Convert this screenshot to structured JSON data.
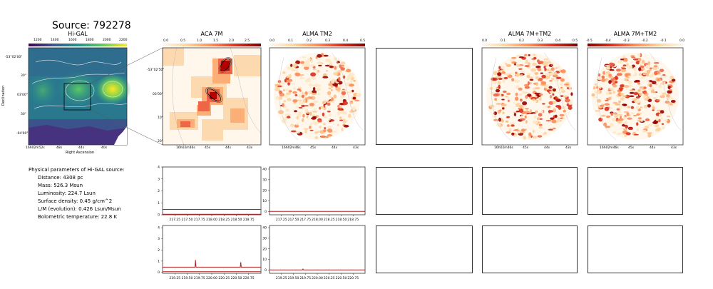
{
  "source_title": "Source: 792278",
  "colors": {
    "axis": "#333333",
    "spectrum": "#b22222",
    "higal_bright": "#fde725",
    "higal_dark": "#440154",
    "cmap_red": "#7f0000"
  },
  "physical": {
    "heading": "Physical parameters of Hi-GAL source:",
    "lines": [
      "Distance: 4308 pc",
      "Mass: 526.3 Msun",
      "Luminosity: 224.7 Lsun",
      "Surface density: 0.45 g/cm^2",
      "L/M (evolution): 0.426 Lsun/Msun",
      "Bolometric temperature: 22.8 K"
    ]
  },
  "chart_data": [
    {
      "type": "heatmap",
      "title": "Hi-GAL",
      "xlabel": "Right Ascension",
      "ylabel": "Declination",
      "colorbar_ticks": [
        "1200",
        "1400",
        "1600",
        "1800",
        "2000",
        "2200"
      ],
      "x_ticks": [
        "16h02m52s",
        "48s",
        "44s",
        "40s"
      ],
      "y_ticks": [
        "-53°02'00\"",
        "30\"",
        "03'00\"",
        "30\"",
        "-04'00\""
      ]
    },
    {
      "type": "heatmap",
      "title": "ACA 7M",
      "colorbar_ticks": [
        "0.0",
        "0.5",
        "1.0",
        "1.5",
        "2.0",
        "2.5"
      ],
      "x_ticks": [
        "16h02m46s",
        "45s",
        "44s",
        "43s"
      ],
      "y_ticks": [
        "-53°02'50\"",
        "03'00\"",
        "10\"",
        "20\""
      ]
    },
    {
      "type": "heatmap",
      "title": "ALMA TM2",
      "colorbar_ticks": [
        "0.0",
        "0.1",
        "0.2",
        "0.3",
        "0.4",
        "0.5"
      ],
      "x_ticks": [
        "16h02m46s",
        "45s",
        "44s",
        "43s"
      ]
    },
    {
      "type": "heatmap",
      "title": "ALMA 7M+TM2",
      "colorbar_ticks": [
        "0.0",
        "0.1",
        "0.2",
        "0.3",
        "0.4",
        "0.5"
      ],
      "x_ticks": [
        "16h02m46s",
        "45s",
        "44s",
        "43s"
      ]
    },
    {
      "type": "heatmap",
      "title": "ALMA 7M+TM2",
      "colorbar_ticks": [
        "-0.5",
        "-0.4",
        "-0.3",
        "-0.2",
        "-0.1",
        "0.0"
      ],
      "x_ticks": [
        "16h02m46s",
        "45s",
        "44s",
        "43s"
      ]
    },
    {
      "type": "line",
      "x_ticks": [
        "217.25",
        "217.50",
        "217.75",
        "218.00",
        "218.25",
        "218.50",
        "218.75"
      ],
      "y_ticks": [
        "0",
        "1",
        "2",
        "3",
        "4"
      ],
      "xlim": [
        217.0,
        219.0
      ],
      "ylim": [
        0,
        4
      ],
      "series": [
        {
          "x": [
            217.0,
            219.0
          ],
          "y": [
            0.45,
            0.45
          ]
        },
        {
          "x": [
            217.0,
            219.0
          ],
          "y": [
            0.05,
            0.05
          ]
        }
      ]
    },
    {
      "type": "line",
      "x_ticks": [
        "217.25",
        "217.50",
        "217.75",
        "218.00",
        "218.25",
        "218.50",
        "218.75"
      ],
      "y_ticks": [
        "0",
        "10",
        "20",
        "30",
        "40"
      ],
      "xlim": [
        217.0,
        219.0
      ],
      "ylim": [
        -3,
        42
      ],
      "series": [
        {
          "x": [
            217.0,
            219.0
          ],
          "y": [
            0.2,
            0.2
          ]
        }
      ]
    },
    {
      "type": "line",
      "x_ticks": [
        "219.25",
        "219.50",
        "219.75",
        "220.00",
        "220.25",
        "220.50",
        "220.75"
      ],
      "y_ticks": [
        "0",
        "1",
        "2",
        "3",
        "4"
      ],
      "xlim": [
        219.0,
        221.0
      ],
      "ylim": [
        -0.1,
        4.2
      ],
      "series": [
        {
          "x": [
            219.0,
            219.66,
            219.67,
            219.68,
            220.58,
            220.59,
            220.6,
            221.0
          ],
          "y": [
            0.45,
            0.45,
            1.1,
            0.45,
            0.45,
            0.9,
            0.45,
            0.45
          ]
        },
        {
          "x": [
            219.0,
            221.0
          ],
          "y": [
            0.05,
            0.05
          ]
        }
      ]
    },
    {
      "type": "line",
      "x_ticks": [
        "219.25",
        "219.50",
        "219.75",
        "220.00",
        "220.25",
        "220.50",
        "220.75"
      ],
      "y_ticks": [
        "0",
        "10",
        "20",
        "30",
        "40"
      ],
      "xlim": [
        219.0,
        221.0
      ],
      "ylim": [
        -3,
        42
      ],
      "series": [
        {
          "x": [
            219.0,
            219.69,
            219.7,
            219.71,
            221.0
          ],
          "y": [
            0.2,
            0.2,
            1.0,
            0.2,
            0.2
          ]
        }
      ]
    }
  ]
}
